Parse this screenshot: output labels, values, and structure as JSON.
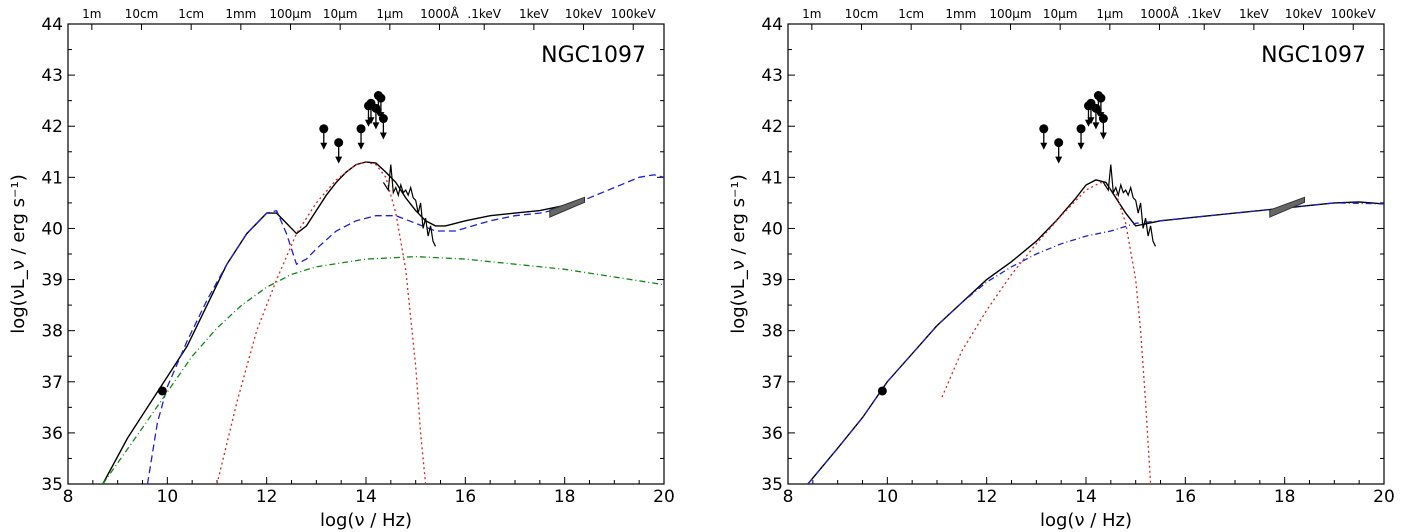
{
  "chart_data": [
    {
      "type": "line",
      "title": "NGC1097",
      "xlabel": "log(ν / Hz)",
      "ylabel": "log(νL_ν / erg s⁻¹)",
      "xlim": [
        8,
        20
      ],
      "ylim": [
        35,
        44
      ],
      "x_ticks": [
        "8",
        "10",
        "12",
        "14",
        "16",
        "18",
        "20"
      ],
      "y_ticks": [
        "35",
        "36",
        "37",
        "38",
        "39",
        "40",
        "41",
        "42",
        "43",
        "44"
      ],
      "top_axis_labels": [
        {
          "text": "1m",
          "x": 8.48
        },
        {
          "text": "10cm",
          "x": 9.48
        },
        {
          "text": "1cm",
          "x": 10.48
        },
        {
          "text": "1mm",
          "x": 11.48
        },
        {
          "text": "100μm",
          "x": 12.48
        },
        {
          "text": "10μm",
          "x": 13.48
        },
        {
          "text": "1μm",
          "x": 14.48
        },
        {
          "text": "1000Å",
          "x": 15.48
        },
        {
          "text": ".1keV",
          "x": 16.38
        },
        {
          "text": "1keV",
          "x": 17.38
        },
        {
          "text": "10keV",
          "x": 18.38
        },
        {
          "text": "100keV",
          "x": 19.38
        }
      ],
      "series": [
        {
          "style": "total",
          "color": "#000000",
          "dash": "",
          "x": [
            8.7,
            9.2,
            9.6,
            10.0,
            10.4,
            10.8,
            11.2,
            11.6,
            12.0,
            12.2,
            12.4,
            12.6,
            12.8,
            13.0,
            13.2,
            13.4,
            13.6,
            13.8,
            14.0,
            14.2,
            14.4,
            14.6,
            14.8,
            15.0,
            15.2,
            15.4,
            15.6,
            16.0,
            16.5,
            17.0,
            17.5,
            18.0,
            18.4
          ],
          "y": [
            35.0,
            35.9,
            36.5,
            37.1,
            37.7,
            38.5,
            39.3,
            39.9,
            40.3,
            40.3,
            40.1,
            39.9,
            40.05,
            40.35,
            40.65,
            40.9,
            41.1,
            41.25,
            41.3,
            41.28,
            41.1,
            40.9,
            40.6,
            40.35,
            40.15,
            40.05,
            40.05,
            40.15,
            40.25,
            40.3,
            40.35,
            40.45,
            40.55
          ]
        },
        {
          "style": "dashed-blue",
          "color": "#1f1fd6",
          "dash": "7,4",
          "x": [
            9.6,
            9.8,
            10.0,
            10.4,
            10.8,
            11.2,
            11.6,
            12.0,
            12.2,
            12.4,
            12.6,
            12.8,
            13.0,
            13.4,
            13.8,
            14.2,
            14.6,
            15.0,
            15.4,
            15.8,
            16.5,
            17.0,
            17.5,
            18.0,
            18.5,
            19.0,
            19.5,
            19.8,
            20.0
          ],
          "y": [
            35.0,
            36.2,
            36.9,
            37.8,
            38.6,
            39.3,
            39.9,
            40.3,
            40.35,
            39.9,
            39.3,
            39.4,
            39.6,
            39.95,
            40.15,
            40.25,
            40.25,
            40.1,
            39.95,
            39.95,
            40.15,
            40.25,
            40.3,
            40.4,
            40.6,
            40.8,
            41.0,
            41.05,
            41.0
          ]
        },
        {
          "style": "dotted-red",
          "color": "#dd2222",
          "dash": "2,3",
          "x": [
            11.0,
            11.4,
            11.8,
            12.2,
            12.6,
            13.0,
            13.4,
            13.8,
            14.0,
            14.2,
            14.4,
            14.6,
            14.8,
            15.0,
            15.1,
            15.2
          ],
          "y": [
            35.0,
            36.6,
            38.0,
            39.0,
            39.9,
            40.5,
            40.95,
            41.25,
            41.3,
            41.25,
            41.0,
            40.3,
            39.2,
            37.3,
            36.0,
            35.0
          ]
        },
        {
          "style": "dashdot-green",
          "color": "#118811",
          "dash": "6,3,1,3",
          "x": [
            8.7,
            9.5,
            10.0,
            10.5,
            11.0,
            11.5,
            12.0,
            12.5,
            13.0,
            14.0,
            15.0,
            16.0,
            17.0,
            18.0,
            19.0,
            20.0
          ],
          "y": [
            35.0,
            36.1,
            36.8,
            37.5,
            38.05,
            38.5,
            38.85,
            39.1,
            39.25,
            39.4,
            39.45,
            39.4,
            39.3,
            39.2,
            39.05,
            38.9
          ]
        }
      ],
      "observed_points": [
        {
          "x": 9.9,
          "y": 36.82
        }
      ],
      "upper_limits": [
        {
          "x": 13.15,
          "y": 41.95
        },
        {
          "x": 13.45,
          "y": 41.68
        },
        {
          "x": 13.9,
          "y": 41.95
        },
        {
          "x": 14.05,
          "y": 42.4
        },
        {
          "x": 14.1,
          "y": 42.45
        },
        {
          "x": 14.2,
          "y": 42.35
        },
        {
          "x": 14.25,
          "y": 42.6
        },
        {
          "x": 14.3,
          "y": 42.55
        },
        {
          "x": 14.35,
          "y": 42.15
        }
      ],
      "ir_spectrum": {
        "x": [
          14.35,
          14.45,
          14.5,
          14.55,
          14.6,
          14.65,
          14.7,
          14.75,
          14.8,
          14.85,
          14.9,
          14.95,
          15.0,
          15.05,
          15.1,
          15.15,
          15.2,
          15.25,
          15.3,
          15.35,
          15.4
        ],
        "y": [
          40.9,
          40.75,
          41.25,
          40.7,
          40.8,
          40.65,
          40.85,
          40.7,
          40.75,
          40.65,
          40.8,
          40.6,
          40.55,
          40.3,
          40.5,
          40.0,
          40.2,
          39.85,
          40.05,
          39.75,
          39.65
        ]
      },
      "xray_bowtie": {
        "x": [
          17.7,
          18.4
        ],
        "y": [
          40.3,
          40.55
        ]
      }
    },
    {
      "type": "line",
      "title": "NGC1097",
      "xlabel": "log(ν / Hz)",
      "ylabel": "log(νL_ν / erg s⁻¹)",
      "xlim": [
        8,
        20
      ],
      "ylim": [
        35,
        44
      ],
      "x_ticks": [
        "8",
        "10",
        "12",
        "14",
        "16",
        "18",
        "20"
      ],
      "y_ticks": [
        "35",
        "36",
        "37",
        "38",
        "39",
        "40",
        "41",
        "42",
        "43",
        "44"
      ],
      "top_axis_labels": [
        {
          "text": "1m",
          "x": 8.48
        },
        {
          "text": "10cm",
          "x": 9.48
        },
        {
          "text": "1cm",
          "x": 10.48
        },
        {
          "text": "1mm",
          "x": 11.48
        },
        {
          "text": "100μm",
          "x": 12.48
        },
        {
          "text": "10μm",
          "x": 13.48
        },
        {
          "text": "1μm",
          "x": 14.48
        },
        {
          "text": "1000Å",
          "x": 15.48
        },
        {
          "text": ".1keV",
          "x": 16.38
        },
        {
          "text": "1keV",
          "x": 17.38
        },
        {
          "text": "10keV",
          "x": 18.38
        },
        {
          "text": "100keV",
          "x": 19.38
        }
      ],
      "series": [
        {
          "style": "total",
          "color": "#000000",
          "dash": "",
          "x": [
            8.4,
            9.0,
            9.5,
            10.0,
            10.5,
            11.0,
            11.5,
            12.0,
            12.5,
            13.0,
            13.4,
            13.8,
            14.0,
            14.2,
            14.4,
            14.6,
            14.8,
            15.0,
            15.5,
            16.0,
            17.0,
            18.0,
            19.0,
            19.5,
            20.0
          ],
          "y": [
            35.0,
            35.7,
            36.3,
            37.0,
            37.55,
            38.1,
            38.55,
            39.0,
            39.35,
            39.75,
            40.15,
            40.6,
            40.85,
            40.95,
            40.9,
            40.6,
            40.3,
            40.05,
            40.15,
            40.2,
            40.3,
            40.4,
            40.5,
            40.52,
            40.48
          ]
        },
        {
          "style": "dashdot-blue",
          "color": "#1f1fd6",
          "dash": "6,3,1,3",
          "x": [
            8.4,
            9.0,
            9.5,
            10.0,
            10.5,
            11.0,
            11.5,
            12.0,
            12.5,
            13.0,
            13.5,
            14.0,
            14.5,
            15.0,
            16.0,
            17.0,
            18.0,
            19.0,
            20.0
          ],
          "y": [
            35.0,
            35.7,
            36.3,
            37.0,
            37.55,
            38.1,
            38.55,
            38.95,
            39.25,
            39.5,
            39.7,
            39.85,
            39.95,
            40.1,
            40.2,
            40.3,
            40.4,
            40.5,
            40.48
          ]
        },
        {
          "style": "dotted-red",
          "color": "#dd2222",
          "dash": "2,3",
          "x": [
            11.1,
            11.5,
            12.0,
            12.5,
            13.0,
            13.5,
            14.0,
            14.3,
            14.6,
            14.8,
            15.0,
            15.1,
            15.2,
            15.3
          ],
          "y": [
            36.7,
            37.6,
            38.4,
            39.1,
            39.7,
            40.25,
            40.75,
            40.9,
            40.7,
            40.1,
            39.0,
            38.0,
            36.6,
            35.0
          ]
        }
      ],
      "observed_points": [
        {
          "x": 9.9,
          "y": 36.82
        }
      ],
      "upper_limits": [
        {
          "x": 13.15,
          "y": 41.95
        },
        {
          "x": 13.45,
          "y": 41.68
        },
        {
          "x": 13.9,
          "y": 41.95
        },
        {
          "x": 14.05,
          "y": 42.4
        },
        {
          "x": 14.1,
          "y": 42.45
        },
        {
          "x": 14.2,
          "y": 42.35
        },
        {
          "x": 14.25,
          "y": 42.6
        },
        {
          "x": 14.3,
          "y": 42.55
        },
        {
          "x": 14.35,
          "y": 42.15
        }
      ],
      "ir_spectrum": {
        "x": [
          14.35,
          14.45,
          14.5,
          14.55,
          14.6,
          14.65,
          14.7,
          14.75,
          14.8,
          14.85,
          14.9,
          14.95,
          15.0,
          15.05,
          15.1,
          15.15,
          15.2,
          15.25,
          15.3,
          15.35,
          15.4
        ],
        "y": [
          40.9,
          40.75,
          41.25,
          40.7,
          40.8,
          40.65,
          40.85,
          40.7,
          40.75,
          40.65,
          40.8,
          40.6,
          40.55,
          40.3,
          40.5,
          40.0,
          40.2,
          39.85,
          40.05,
          39.75,
          39.65
        ]
      },
      "xray_bowtie": {
        "x": [
          17.7,
          18.4
        ],
        "y": [
          40.3,
          40.55
        ]
      }
    }
  ]
}
